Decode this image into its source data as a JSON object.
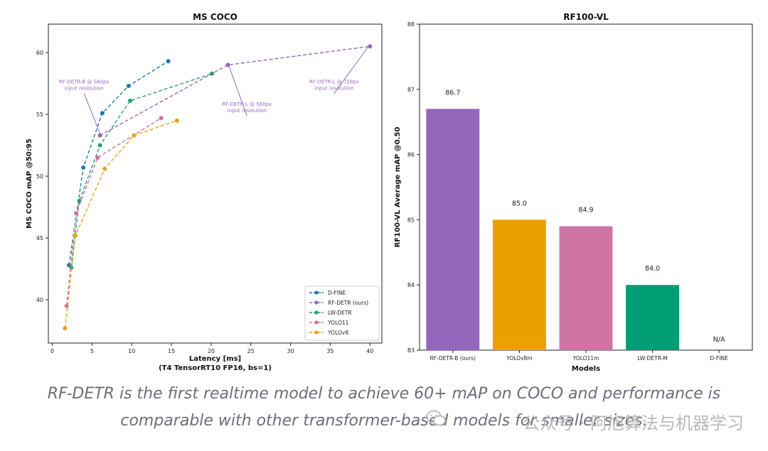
{
  "chart_data": [
    {
      "type": "line",
      "title": "MS COCO",
      "xlabel": "Latency [ms]",
      "xlabel_sub": "(T4 TensorRT10 FP16, bs=1)",
      "ylabel": "MS COCO mAP @50:95",
      "xlim": [
        -0.5,
        41.5
      ],
      "ylim": [
        36.5,
        62.3
      ],
      "x_ticks": [
        0,
        5,
        10,
        15,
        20,
        25,
        30,
        35,
        40
      ],
      "y_ticks": [
        40,
        45,
        50,
        55,
        60
      ],
      "grid": false,
      "legend_position": "bottom-right",
      "series": [
        {
          "name": "D-FINE",
          "color": "#1f77b4",
          "x": [
            2.1,
            3.9,
            6.3,
            9.6,
            14.6
          ],
          "y": [
            42.8,
            50.7,
            55.1,
            57.3,
            59.3
          ]
        },
        {
          "name": "RF-DETR (ours)",
          "color": "#9467bd",
          "x": [
            6.0,
            22.1,
            40.0
          ],
          "y": [
            53.3,
            59.0,
            60.5
          ]
        },
        {
          "name": "LW-DETR",
          "color": "#2aa06b",
          "x": [
            2.4,
            3.4,
            6.0,
            9.8,
            20.1
          ],
          "y": [
            42.6,
            48.0,
            52.5,
            56.1,
            58.3
          ]
        },
        {
          "name": "YOLO11",
          "color": "#d36ea3",
          "x": [
            1.8,
            3.0,
            5.7,
            13.7
          ],
          "y": [
            39.5,
            47.0,
            51.5,
            54.7
          ]
        },
        {
          "name": "YOLOv8",
          "color": "#e9a21c",
          "x": [
            1.6,
            2.9,
            6.6,
            10.3,
            15.7
          ],
          "y": [
            37.7,
            45.2,
            50.6,
            53.3,
            54.5
          ]
        }
      ],
      "annotations": [
        {
          "lines": [
            "RF-DETR-B @ 560px",
            "input resolution"
          ],
          "x": 6.0,
          "y": 53.3,
          "text_x": 4.0,
          "text_y": 57.5
        },
        {
          "lines": [
            "RF-DETR-L @ 560px",
            "input resolution"
          ],
          "x": 22.1,
          "y": 59.0,
          "text_x": 24.5,
          "text_y": 55.7
        },
        {
          "lines": [
            "RF-DETR-L @ 728px",
            "input resolution"
          ],
          "x": 40.0,
          "y": 60.5,
          "text_x": 35.5,
          "text_y": 57.5
        }
      ]
    },
    {
      "type": "bar",
      "title": "RF100-VL",
      "xlabel": "Models",
      "ylabel": "RF100-VL Average mAP @0.50",
      "ylim": [
        83,
        88
      ],
      "y_ticks": [
        83,
        84,
        85,
        86,
        87,
        88
      ],
      "grid": false,
      "categories": [
        "RF-DETR-B (ours)",
        "YOLOv8m",
        "YOLO11m",
        "LW-DETR-M",
        "D-FINE"
      ],
      "values": [
        86.7,
        85.0,
        84.9,
        84.0,
        null
      ],
      "value_labels": [
        "86.7",
        "85.0",
        "84.9",
        "84.0",
        "N/A"
      ],
      "colors": [
        "#9467bd",
        "#e9a100",
        "#cf75a6",
        "#009e74",
        "#cccccc"
      ]
    }
  ],
  "caption": {
    "line1": "RF-DETR is the first realtime model to achieve 60+ mAP on COCO and performance is",
    "line2": "comparable with other transformer-based models for smaller sizes."
  },
  "watermark": {
    "text": "公众号 · 阿旭算法与机器学习"
  }
}
